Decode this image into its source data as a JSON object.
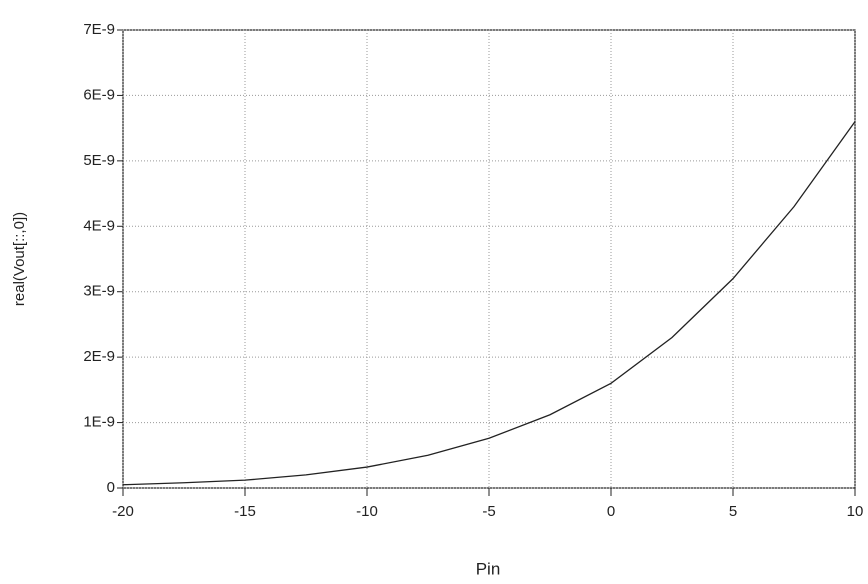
{
  "chart_data": {
    "type": "line",
    "x_label": "Pin",
    "y_label": "real(Vout[::,0])",
    "x": [
      -20,
      -17.5,
      -15,
      -12.5,
      -10,
      -7.5,
      -5,
      -2.5,
      0,
      2.5,
      5,
      7.5,
      10
    ],
    "series": [
      {
        "color": "#222222",
        "values": [
          5e-11,
          8e-11,
          1.2e-10,
          2e-10,
          3.2e-10,
          5e-10,
          7.6e-10,
          1.12e-09,
          1.6e-09,
          2.3e-09,
          3.2e-09,
          4.3e-09,
          5.6e-09
        ]
      }
    ],
    "xlim": [
      -20,
      10
    ],
    "xticks": [
      -20,
      -15,
      -10,
      -5,
      0,
      5,
      10
    ],
    "ylim": [
      0,
      7e-09
    ],
    "yticks": [
      0,
      {
        "value": 1e-09,
        "label": "1E-9"
      },
      {
        "value": 2e-09,
        "label": "2E-9"
      },
      {
        "value": 3e-09,
        "label": "3E-9"
      },
      {
        "value": 4e-09,
        "label": "4E-9"
      },
      {
        "value": 5e-09,
        "label": "5E-9"
      },
      {
        "value": 6e-09,
        "label": "6E-9"
      },
      {
        "value": 7e-09,
        "label": "7E-9"
      }
    ],
    "grid": true
  }
}
